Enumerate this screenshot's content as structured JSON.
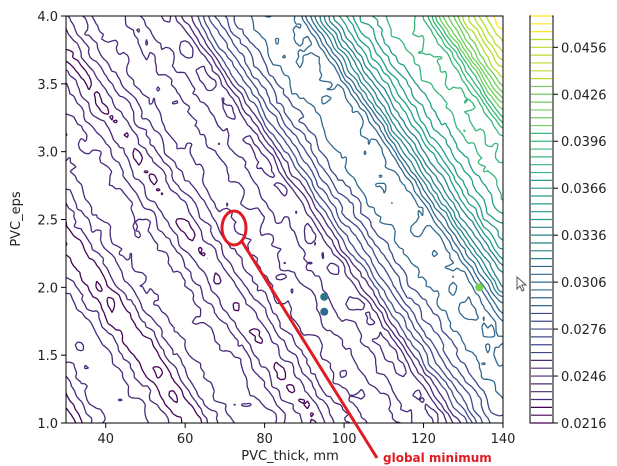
{
  "chart_data": {
    "type": "contour",
    "xlabel": "PVC_thick, mm",
    "ylabel": "PVC_eps",
    "xlim": [
      30,
      140
    ],
    "ylim": [
      1.0,
      4.0
    ],
    "xticks": [
      40,
      60,
      80,
      100,
      120,
      140
    ],
    "yticks": [
      1.0,
      1.5,
      2.0,
      2.5,
      3.0,
      3.5,
      4.0
    ],
    "colorbar": {
      "colormap": "viridis",
      "range": [
        0.0216,
        0.0476
      ],
      "ticks": [
        0.0216,
        0.0246,
        0.0276,
        0.0306,
        0.0336,
        0.0366,
        0.0396,
        0.0426,
        0.0456
      ]
    },
    "annotation": {
      "text": "global minimum",
      "marker_at": {
        "x": 72,
        "y": 2.45
      },
      "color": "#e01b24"
    },
    "colors": {
      "low": "#440154",
      "mid": "#31688e",
      "high": "#35b779",
      "top": "#fde725"
    }
  }
}
